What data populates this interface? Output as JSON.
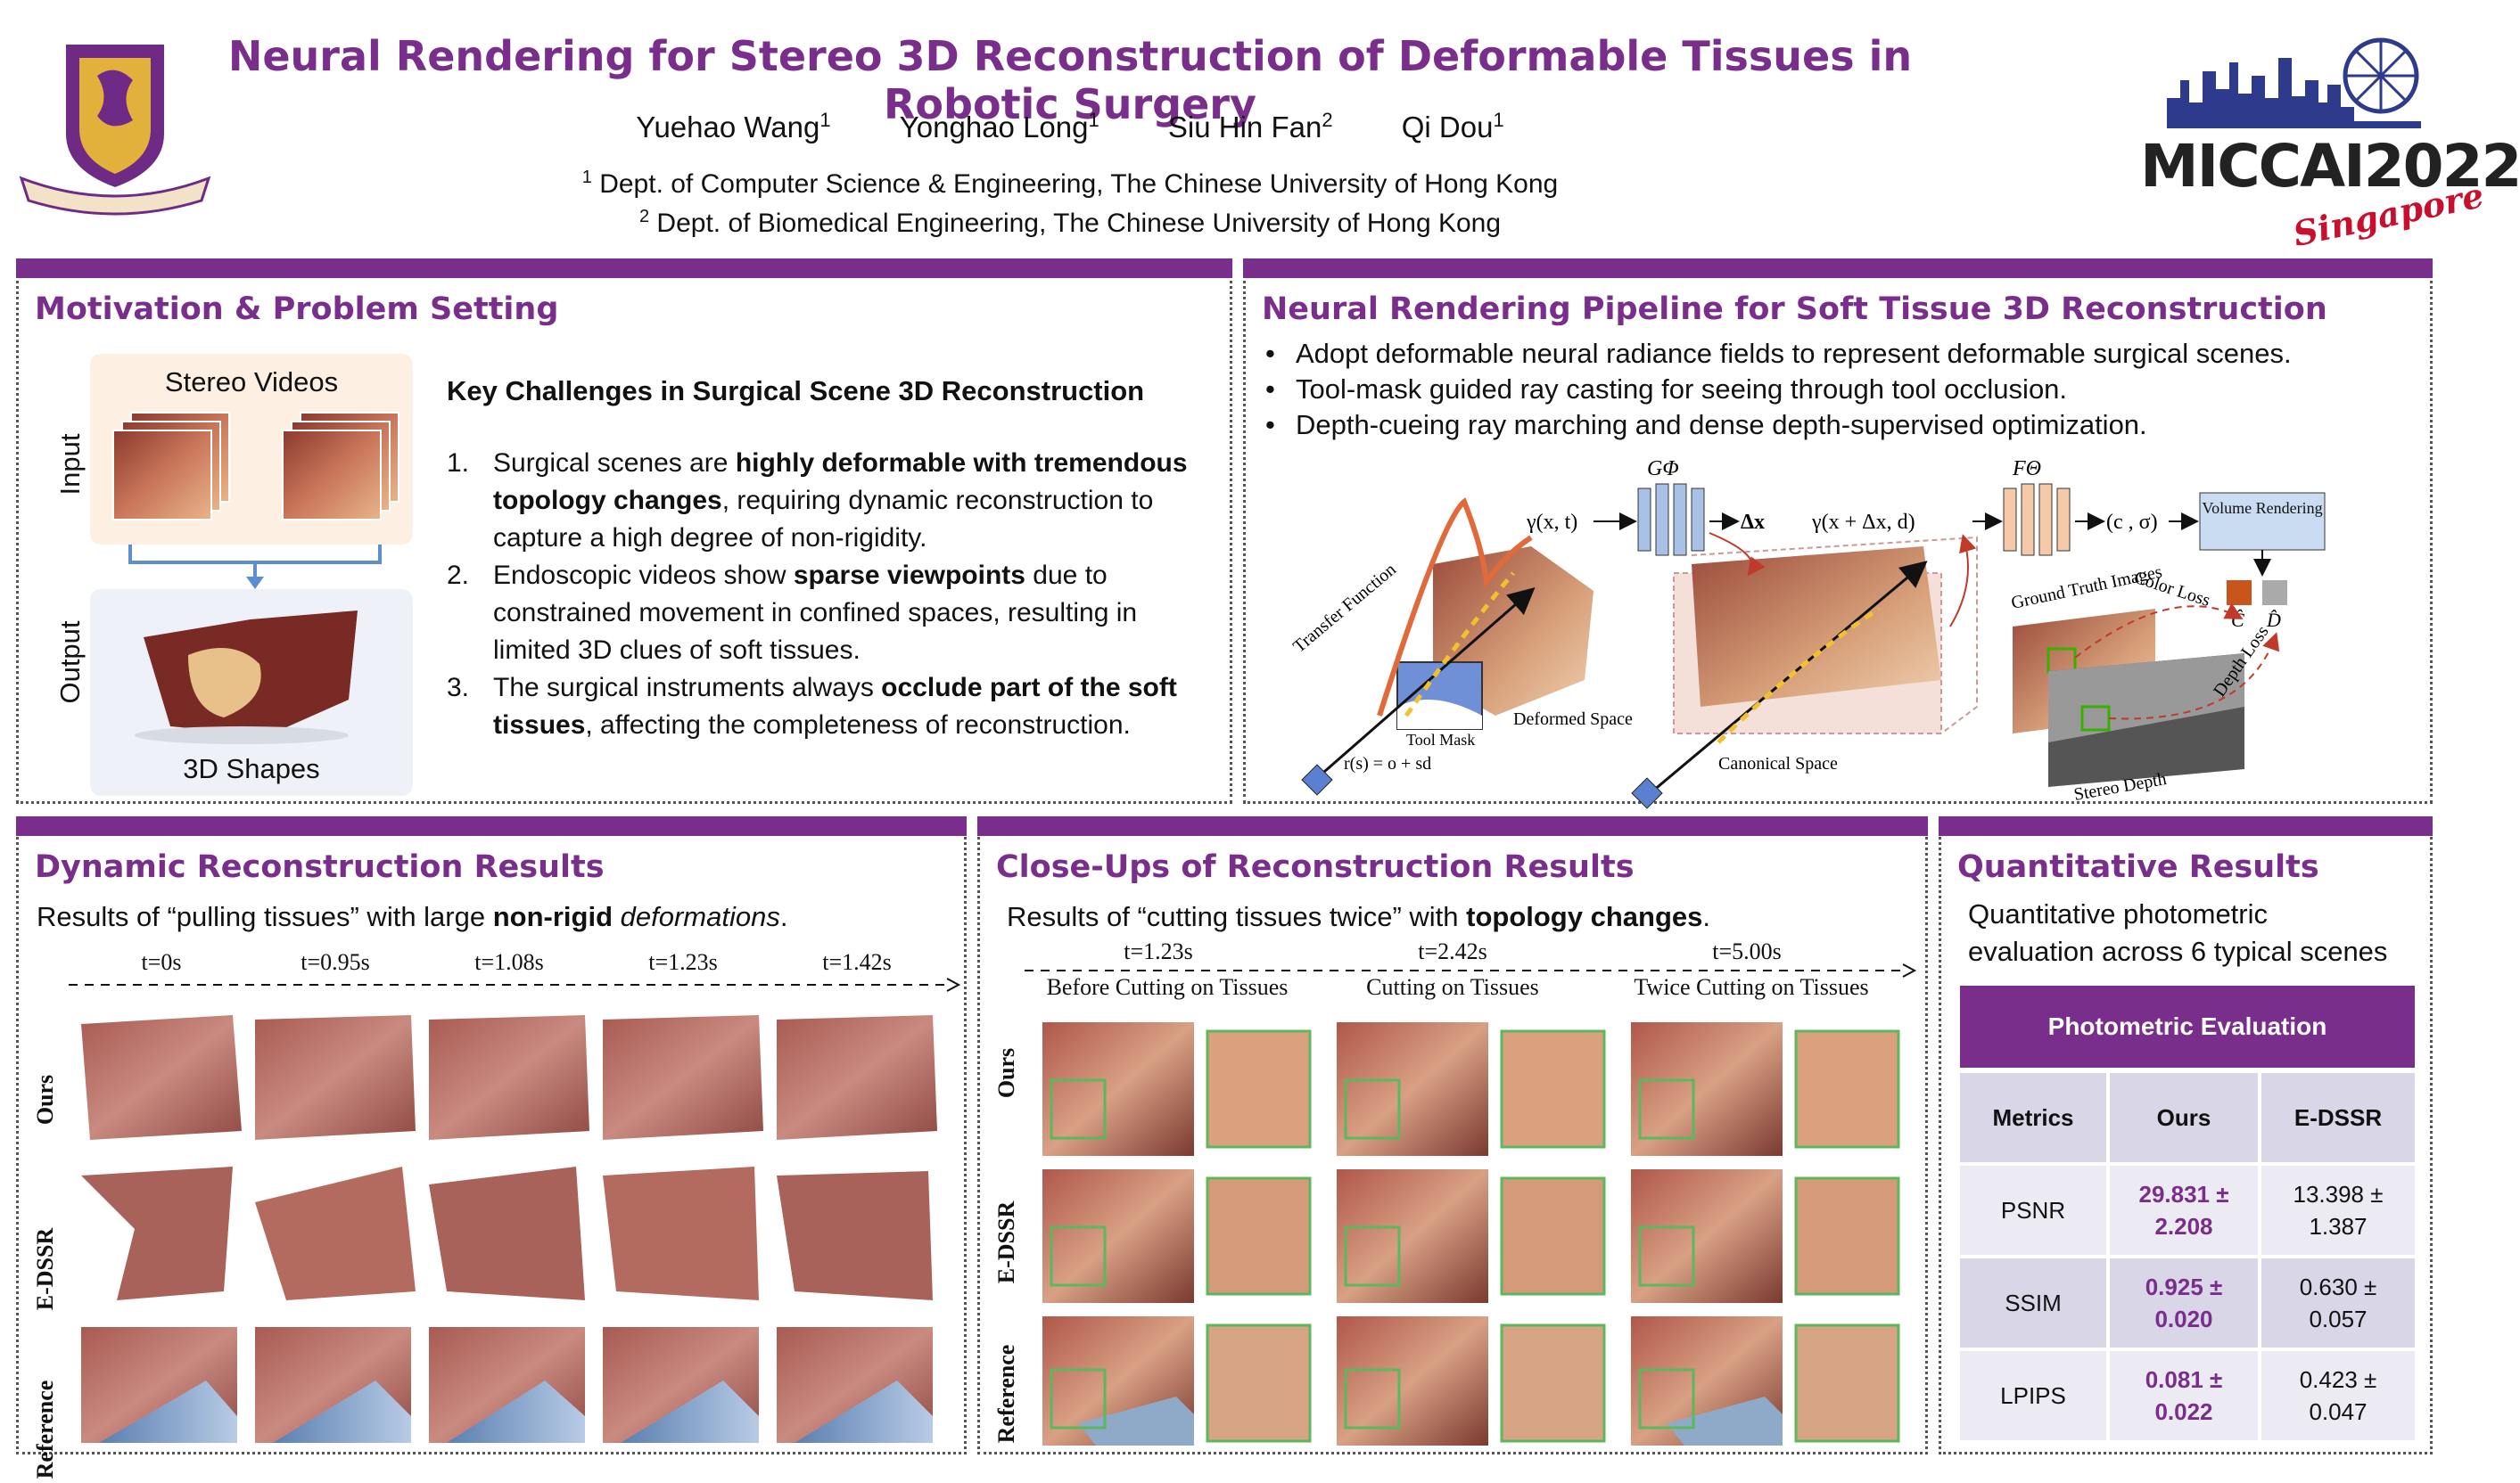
{
  "header": {
    "title": "Neural Rendering for Stereo 3D Reconstruction of Deformable Tissues in Robotic Surgery",
    "authors": [
      {
        "name": "Yuehao Wang",
        "sup": "1"
      },
      {
        "name": "Yonghao Long",
        "sup": "1"
      },
      {
        "name": "Siu Hin Fan",
        "sup": "2"
      },
      {
        "name": "Qi Dou",
        "sup": "1"
      }
    ],
    "affiliations": [
      {
        "sup": "1",
        "text": "Dept. of Computer Science & Engineering, The Chinese University of Hong Kong"
      },
      {
        "sup": "2",
        "text": "Dept. of Biomedical Engineering, The Chinese University of Hong Kong"
      }
    ],
    "conference_logo": {
      "name": "MICCAI",
      "year": "2022",
      "city": "Singapore"
    }
  },
  "motivation": {
    "heading": "Motivation & Problem Setting",
    "input_label": "Input",
    "output_label": "Output",
    "stereo_label": "Stereo Videos",
    "shapes_label": "3D Shapes",
    "challenges_title": "Key Challenges in Surgical Scene 3D Reconstruction",
    "challenges": [
      {
        "num": "1.",
        "pre": "Surgical scenes are ",
        "bold": "highly deformable with tremendous topology changes",
        "post": ", requiring dynamic reconstruction to capture a high degree of non-rigidity."
      },
      {
        "num": "2.",
        "pre": "Endoscopic videos show ",
        "bold": "sparse viewpoints",
        "post": " due to constrained movement in confined spaces, resulting in limited 3D clues of soft tissues."
      },
      {
        "num": "3.",
        "pre": "The surgical instruments always ",
        "bold": "occlude part of the soft tissues",
        "post": ", affecting the completeness of reconstruction."
      }
    ]
  },
  "pipeline": {
    "heading": "Neural Rendering Pipeline for Soft Tissue 3D Reconstruction",
    "bullets": [
      "Adopt deformable neural radiance fields to represent deformable surgical scenes.",
      "Tool-mask guided ray casting for seeing through tool occlusion.",
      "Depth-cueing ray marching and dense depth-supervised optimization."
    ],
    "diagram": {
      "g_label": "GΦ",
      "f_label": "FΘ",
      "gamma_xt": "γ(x, t)",
      "delta_x": "Δx",
      "gamma_shift": "γ(x + Δx, d)",
      "c_sigma": "(c , σ)",
      "volume_rendering": "Volume Rendering",
      "transfer_function": "Transfer Function",
      "tool_mask": "Tool Mask",
      "ray": "r(s) = o + sd",
      "deformed_space": "Deformed Space",
      "canonical_space": "Canonical Space",
      "ground_truth": "Ground Truth Images",
      "color_loss": "Color Loss",
      "depth_loss": "Depth Loss",
      "stereo_depth": "Stereo Depth",
      "c_hat": "Ĉ",
      "d_hat": "D̂"
    }
  },
  "dynamic": {
    "heading": "Dynamic Reconstruction Results",
    "subtitle_pre": "Results of “pulling tissues” with large ",
    "subtitle_bold": "non-rigid",
    "subtitle_italic": " deformations",
    "subtitle_end": ".",
    "times": [
      "t=0s",
      "t=0.95s",
      "t=1.08s",
      "t=1.23s",
      "t=1.42s"
    ],
    "rows": [
      "Ours",
      "E-DSSR",
      "Reference"
    ]
  },
  "closeups": {
    "heading": "Close-Ups of Reconstruction Results",
    "subtitle_pre": "Results of “cutting tissues twice” with ",
    "subtitle_bold": "topology changes",
    "subtitle_end": ".",
    "times": [
      "t=1.23s",
      "t=2.42s",
      "t=5.00s"
    ],
    "stages": [
      "Before Cutting on Tissues",
      "Cutting on Tissues",
      "Twice Cutting on Tissues"
    ],
    "rows": [
      "Ours",
      "E-DSSR",
      "Reference"
    ]
  },
  "quant": {
    "heading": "Quantitative Results",
    "description_line1": "Quantitative photometric",
    "description_line2": "evaluation across 6 typical scenes",
    "table_title": "Photometric Evaluation",
    "columns": [
      "Metrics",
      "Ours",
      "E-DSSR"
    ],
    "rows": [
      {
        "metric": "PSNR",
        "ours": [
          "29.831 ±",
          "2.208"
        ],
        "edssr": [
          "13.398 ±",
          "1.387"
        ]
      },
      {
        "metric": "SSIM",
        "ours": [
          "0.925 ±",
          "0.020"
        ],
        "edssr": [
          "0.630 ±",
          "0.057"
        ]
      },
      {
        "metric": "LPIPS",
        "ours": [
          "0.081 ±",
          "0.022"
        ],
        "edssr": [
          "0.423 ±",
          "0.047"
        ]
      }
    ]
  },
  "colors": {
    "accent": "#7a2e8c",
    "table_header_row": "#d9d6e8",
    "table_cell": "#eceaf2"
  }
}
